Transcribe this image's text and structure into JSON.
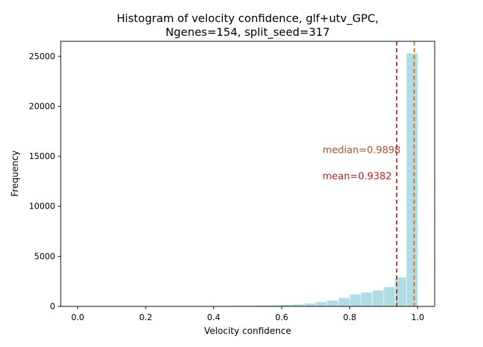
{
  "chart_data": {
    "type": "bar",
    "title_line1": "Histogram of velocity confidence, glf+utv_GPC,",
    "title_line2": "Ngenes=154, split_seed=317",
    "xlabel": "Velocity confidence",
    "ylabel": "Frequency",
    "xlim": [
      -0.05,
      1.05
    ],
    "ylim": [
      0,
      26500
    ],
    "xticks": [
      0.0,
      0.2,
      0.4,
      0.6,
      0.8,
      1.0
    ],
    "xtick_labels": [
      "0.0",
      "0.2",
      "0.4",
      "0.6",
      "0.8",
      "1.0"
    ],
    "yticks": [
      0,
      5000,
      10000,
      15000,
      20000,
      25000
    ],
    "ytick_labels": [
      "0",
      "5000",
      "10000",
      "15000",
      "20000",
      "25000"
    ],
    "bin_width": 0.0333,
    "bins": [
      {
        "x0": 0.0,
        "count": 5
      },
      {
        "x0": 0.033,
        "count": 5
      },
      {
        "x0": 0.067,
        "count": 5
      },
      {
        "x0": 0.1,
        "count": 5
      },
      {
        "x0": 0.133,
        "count": 5
      },
      {
        "x0": 0.167,
        "count": 5
      },
      {
        "x0": 0.2,
        "count": 10
      },
      {
        "x0": 0.233,
        "count": 10
      },
      {
        "x0": 0.267,
        "count": 10
      },
      {
        "x0": 0.3,
        "count": 15
      },
      {
        "x0": 0.333,
        "count": 20
      },
      {
        "x0": 0.367,
        "count": 25
      },
      {
        "x0": 0.4,
        "count": 35
      },
      {
        "x0": 0.433,
        "count": 45
      },
      {
        "x0": 0.467,
        "count": 60
      },
      {
        "x0": 0.5,
        "count": 80
      },
      {
        "x0": 0.533,
        "count": 100
      },
      {
        "x0": 0.567,
        "count": 130
      },
      {
        "x0": 0.6,
        "count": 170
      },
      {
        "x0": 0.633,
        "count": 220
      },
      {
        "x0": 0.667,
        "count": 300
      },
      {
        "x0": 0.7,
        "count": 450
      },
      {
        "x0": 0.733,
        "count": 600
      },
      {
        "x0": 0.767,
        "count": 850
      },
      {
        "x0": 0.8,
        "count": 1200
      },
      {
        "x0": 0.833,
        "count": 1400
      },
      {
        "x0": 0.867,
        "count": 1600
      },
      {
        "x0": 0.9,
        "count": 1950
      },
      {
        "x0": 0.933,
        "count": 2900
      },
      {
        "x0": 0.967,
        "count": 25300
      }
    ],
    "bar_color": "#b0dde3",
    "bar_edge_color": "#e3f1f3",
    "vlines": [
      {
        "name": "mean",
        "x": 0.9382,
        "color": "#b22222",
        "label": "mean=0.9382"
      },
      {
        "name": "median",
        "x": 0.9898,
        "color": "#d2691e",
        "label": "median=0.9898"
      }
    ],
    "annotations": [
      {
        "text": "median=0.9898",
        "x": 0.72,
        "y": 15300,
        "color": "#a0522d"
      },
      {
        "text": "mean=0.9382",
        "x": 0.72,
        "y": 12700,
        "color": "#b22222"
      }
    ],
    "grid": false,
    "legend": "none"
  }
}
